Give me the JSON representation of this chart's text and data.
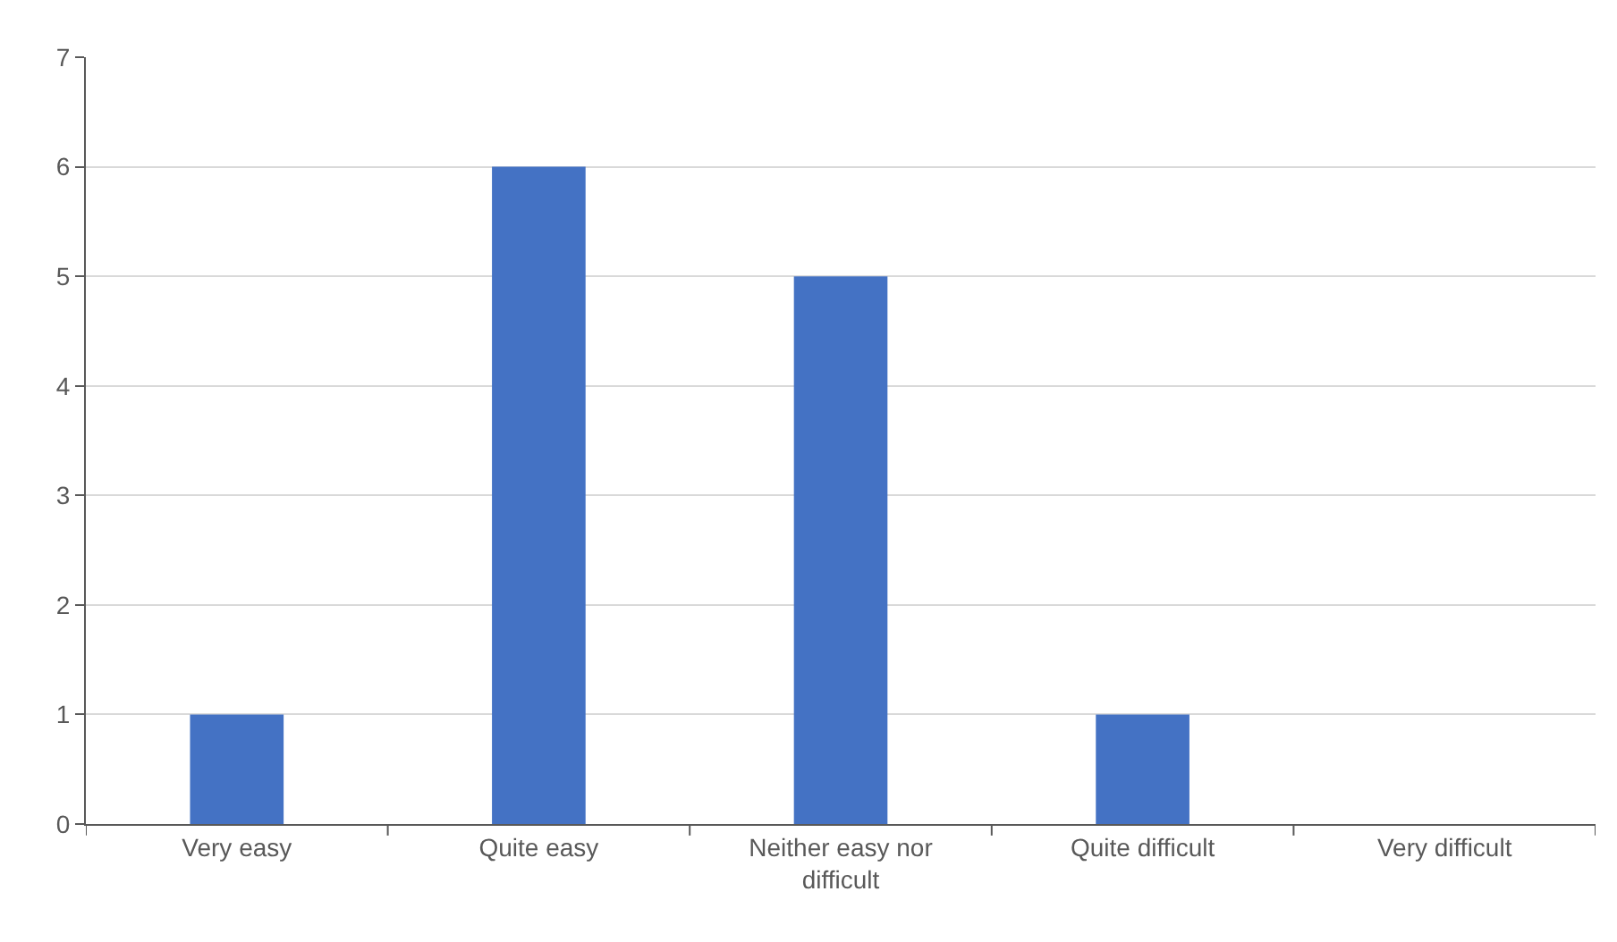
{
  "chart_data": {
    "type": "bar",
    "categories": [
      "Very easy",
      "Quite easy",
      "Neither easy nor difficult",
      "Quite difficult",
      "Very difficult"
    ],
    "values": [
      1,
      6,
      5,
      1,
      0
    ],
    "color": "#4472c4",
    "ylim": [
      0,
      7
    ],
    "yticks": [
      0,
      1,
      2,
      3,
      4,
      5,
      6,
      7
    ],
    "grid": "y"
  }
}
